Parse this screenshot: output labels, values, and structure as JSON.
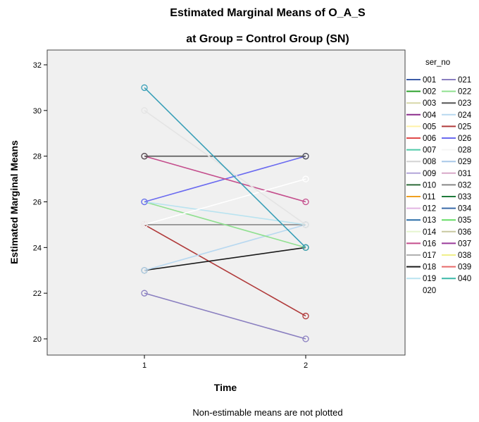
{
  "chart_data": {
    "type": "line",
    "title": "Estimated Marginal Means of O_A_S",
    "subtitle": "at Group = Control Group (SN)",
    "xlabel": "Time",
    "ylabel": "Estimated Marginal Means",
    "footnote": "Non-estimable means are not plotted",
    "categories": [
      "1",
      "2"
    ],
    "yticks": [
      20,
      22,
      24,
      26,
      28,
      30,
      32
    ],
    "ylim": [
      19.4,
      32.6
    ],
    "grid": false,
    "legend_title": "ser_no",
    "legend_placement": "right",
    "legend_entries": [
      {
        "label": "001",
        "color": "#3b5ba7"
      },
      {
        "label": "002",
        "color": "#2ca02c"
      },
      {
        "label": "003",
        "color": "#d7d7a8"
      },
      {
        "label": "004",
        "color": "#8b2d8b"
      },
      {
        "label": "005",
        "color": "#fff2a8"
      },
      {
        "label": "006",
        "color": "#e04a4a"
      },
      {
        "label": "007",
        "color": "#4ec9a8"
      },
      {
        "label": "008",
        "color": "#d4d4d4"
      },
      {
        "label": "009",
        "color": "#b3a6d9"
      },
      {
        "label": "010",
        "color": "#2e6b3a"
      },
      {
        "label": "011",
        "color": "#f0a020"
      },
      {
        "label": "012",
        "color": "#e2b5e2"
      },
      {
        "label": "013",
        "color": "#2c6fa8"
      },
      {
        "label": "014",
        "color": "#e6f5d0"
      },
      {
        "label": "016",
        "color": "#c44d8c"
      },
      {
        "label": "017",
        "color": "#b0b0b0"
      },
      {
        "label": "018",
        "color": "#1a1a1a"
      },
      {
        "label": "019",
        "color": "#b9e3f0"
      },
      {
        "label": "020",
        "color": ""
      },
      {
        "label": "021",
        "color": "#8a7fc0"
      },
      {
        "label": "022",
        "color": "#90e090"
      },
      {
        "label": "023",
        "color": "#555555"
      },
      {
        "label": "024",
        "color": "#b8d8f0"
      },
      {
        "label": "025",
        "color": "#b03a3a"
      },
      {
        "label": "026",
        "color": "#6a6af0"
      },
      {
        "label": "028",
        "color": "#f5f5f5"
      },
      {
        "label": "029",
        "color": "#a8c8e8"
      },
      {
        "label": "031",
        "color": "#d8a8c8"
      },
      {
        "label": "032",
        "color": "#888888"
      },
      {
        "label": "033",
        "color": "#1f7a3a"
      },
      {
        "label": "034",
        "color": "#3a6aa8"
      },
      {
        "label": "035",
        "color": "#66dd66"
      },
      {
        "label": "036",
        "color": "#c8c8a0"
      },
      {
        "label": "037",
        "color": "#9a3a9a"
      },
      {
        "label": "038",
        "color": "#f0f08a"
      },
      {
        "label": "039",
        "color": "#e86a6a"
      },
      {
        "label": "040",
        "color": "#3ab8a8"
      }
    ],
    "series": [
      {
        "name": "021",
        "values": [
          22,
          20
        ],
        "color": "#8a7fc0"
      },
      {
        "name": "025",
        "values": [
          25,
          21
        ],
        "color": "#b03a3a"
      },
      {
        "name": "018",
        "values": [
          23,
          24
        ],
        "color": "#1a1a1a"
      },
      {
        "name": "024",
        "values": [
          23,
          25
        ],
        "color": "#b8d8f0"
      },
      {
        "name": "032",
        "values": [
          25,
          25
        ],
        "color": "#888888"
      },
      {
        "name": "022",
        "values": [
          26,
          24
        ],
        "color": "#90e090"
      },
      {
        "name": "019",
        "values": [
          26,
          25
        ],
        "color": "#b9e3f0"
      },
      {
        "name": "026",
        "values": [
          26,
          28
        ],
        "color": "#6a6af0"
      },
      {
        "name": "016",
        "values": [
          28,
          26
        ],
        "color": "#c44d8c"
      },
      {
        "name": "023",
        "values": [
          28,
          28
        ],
        "color": "#555555"
      },
      {
        "name": "028",
        "values": [
          25,
          27
        ],
        "color": "#ffffff"
      },
      {
        "name": "008",
        "values": [
          30,
          25
        ],
        "color": "#e4e4e4"
      },
      {
        "name": "040",
        "values": [
          31,
          24
        ],
        "color": "#3aa0b8"
      }
    ]
  }
}
